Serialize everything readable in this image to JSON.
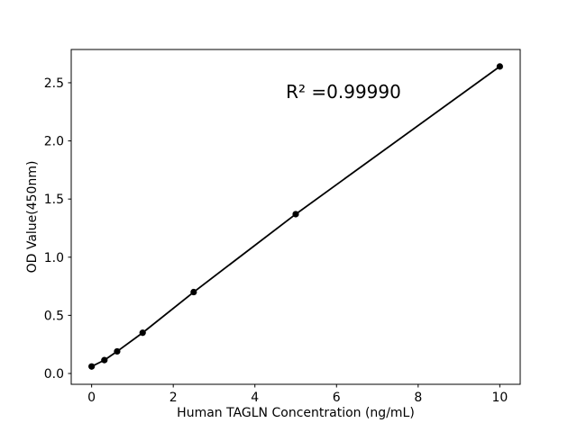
{
  "figure": {
    "background_color": "#ffffff",
    "accent_color": "#000000"
  },
  "chart_data": {
    "type": "line",
    "title": "",
    "xlabel": "Human TAGLN Concentration (ng/mL)",
    "ylabel": "OD Value(450nm)",
    "annotation": {
      "text": "R² =0.99990",
      "x": 6.2,
      "y": 2.42
    },
    "r_squared": "0.99990",
    "x": [
      0,
      0.3125,
      0.625,
      1.25,
      2.5,
      5,
      10
    ],
    "y": [
      0.06,
      0.115,
      0.19,
      0.35,
      0.7,
      1.37,
      2.64
    ],
    "x_ticks": [
      0,
      2,
      4,
      6,
      8,
      10
    ],
    "x_tick_labels": [
      "0",
      "2",
      "4",
      "6",
      "8",
      "10"
    ],
    "y_ticks": [
      0.0,
      0.5,
      1.0,
      1.5,
      2.0,
      2.5
    ],
    "y_tick_labels": [
      "0.0",
      "0.5",
      "1.0",
      "1.5",
      "2.0",
      "2.5"
    ],
    "xlim": [
      -0.5,
      10.5
    ],
    "ylim": [
      -0.093,
      2.786
    ],
    "grid": false,
    "legend": null,
    "marker": "circle",
    "marker_color": "#000000",
    "line_color": "#000000"
  }
}
